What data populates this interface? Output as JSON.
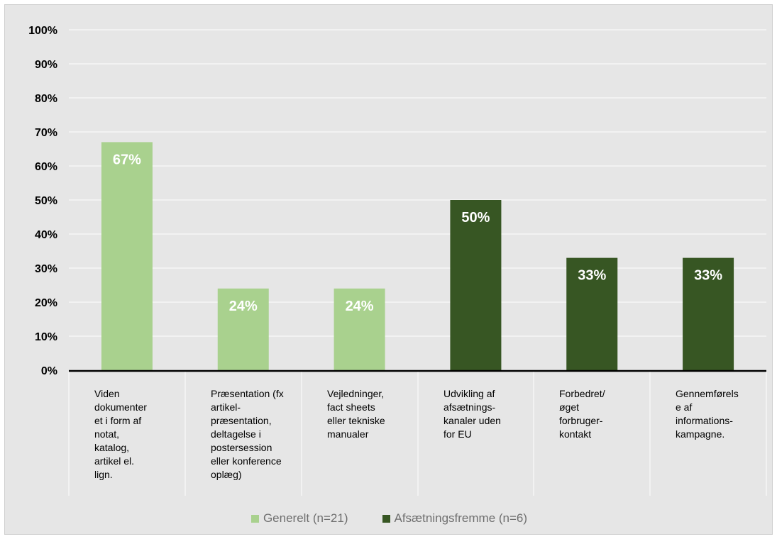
{
  "chart_data": {
    "type": "bar",
    "ylim": [
      0,
      100
    ],
    "yticks": [
      "0%",
      "10%",
      "20%",
      "30%",
      "40%",
      "50%",
      "60%",
      "70%",
      "80%",
      "90%",
      "100%"
    ],
    "grid": true,
    "legend_position": "bottom",
    "categories": [
      "Viden dokumenteret i form af notat, katalog, artikel el. lign.",
      "Præsentation (fx artikel-præsentation, deltagelse i postersession eller konference oplæg)",
      "Vejledninger, fact sheets eller tekniske manualer",
      "Udvikling af afsætnings-kanaler uden for EU",
      "Forbedret/ øget forbruger-kontakt",
      "Gennemførelse af informations-kampagne."
    ],
    "category_label_lines": [
      [
        "Viden",
        "dokumenter",
        "et i form af",
        "notat,",
        "katalog,",
        "artikel el.",
        "lign."
      ],
      [
        "Præsentation (fx",
        "artikel-",
        "præsentation,",
        "deltagelse i",
        "postersession",
        "eller konference",
        "oplæg)"
      ],
      [
        "Vejledninger,",
        "fact sheets",
        "eller tekniske",
        "manualer"
      ],
      [
        "Udvikling af",
        "afsætnings-",
        "kanaler uden",
        "for EU"
      ],
      [
        "Forbedret/",
        "øget",
        "forbruger-",
        "kontakt"
      ],
      [
        "Gennemførels",
        "e af",
        "informations-",
        "kampagne."
      ]
    ],
    "series": [
      {
        "name": "Generelt (n=21)",
        "color": "#a9d18e",
        "values": [
          67,
          24,
          24,
          null,
          null,
          null
        ],
        "labels": [
          "67%",
          "24%",
          "24%",
          "",
          "",
          ""
        ]
      },
      {
        "name": "Afsætningsfremme (n=6)",
        "color": "#375623",
        "values": [
          null,
          null,
          null,
          50,
          33,
          33
        ],
        "labels": [
          "",
          "",
          "",
          "50%",
          "33%",
          "33%"
        ]
      }
    ]
  }
}
